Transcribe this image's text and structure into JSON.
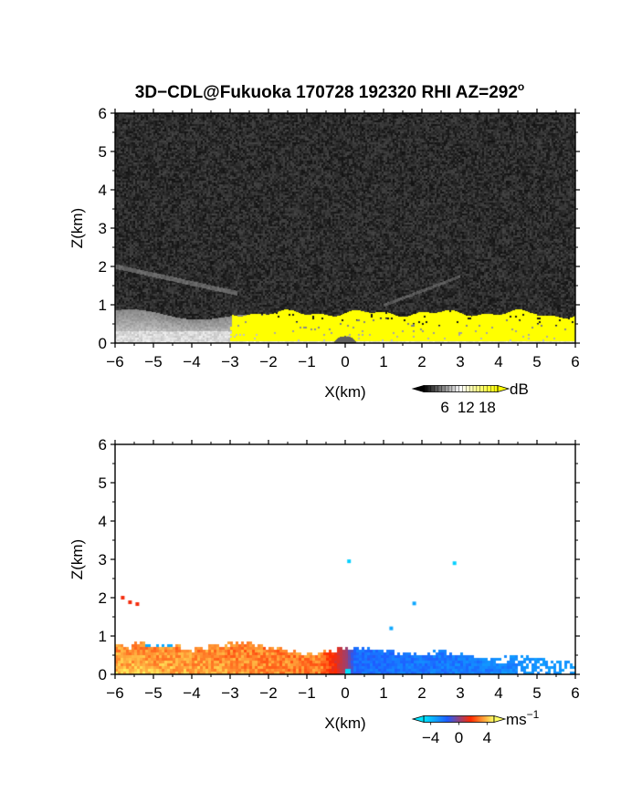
{
  "title": "3D−CDL@Fukuoka 170728 192320 RHI AZ=292",
  "title_degree": "o",
  "chart_data": [
    {
      "type": "heatmap",
      "name": "",
      "variable": "backscatter intensity",
      "xlabel": "X(km)",
      "ylabel": "Z(km)",
      "xlim": [
        -6,
        6
      ],
      "ylim": [
        0,
        6
      ],
      "xticks": [
        "−6",
        "−5",
        "−4",
        "−3",
        "−2",
        "−1",
        "0",
        "1",
        "2",
        "3",
        "4",
        "5",
        "6"
      ],
      "yticks": [
        "0",
        "1",
        "2",
        "3",
        "4",
        "5",
        "6"
      ],
      "colorbar": {
        "unit": "dB",
        "unit_sup": "",
        "ticks": [
          "6",
          "12",
          "18"
        ],
        "range": [
          0,
          21
        ],
        "colors": [
          "#000000",
          "#ffffff",
          "#ffff00"
        ]
      },
      "features": [
        {
          "region": "noise background",
          "x": [
            -6,
            6
          ],
          "z": [
            0,
            6
          ],
          "value_db": 2
        },
        {
          "region": "grey layer",
          "x": [
            -6,
            6
          ],
          "z": [
            0,
            0.85
          ],
          "value_db": 10
        },
        {
          "region": "bright aerosol layer",
          "x": [
            -3,
            6
          ],
          "z": [
            0,
            0.9
          ],
          "value_db": 19
        }
      ]
    },
    {
      "type": "heatmap",
      "name": "",
      "variable": "radial velocity",
      "xlabel": "X(km)",
      "ylabel": "Z(km)",
      "xlim": [
        -6,
        6
      ],
      "ylim": [
        0,
        6
      ],
      "xticks": [
        "−6",
        "−5",
        "−4",
        "−3",
        "−2",
        "−1",
        "0",
        "1",
        "2",
        "3",
        "4",
        "5",
        "6"
      ],
      "yticks": [
        "0",
        "1",
        "2",
        "3",
        "4",
        "5",
        "6"
      ],
      "colorbar": {
        "unit": "ms",
        "unit_sup": "−1",
        "ticks": [
          "−4",
          "0",
          "4"
        ],
        "range": [
          -5,
          5
        ],
        "colors": [
          "#00e5ff",
          "#1e5cff",
          "#ff2a00",
          "#ffff66"
        ]
      },
      "features": [
        {
          "region": "receding flow",
          "x": [
            -6,
            0
          ],
          "z": [
            0,
            0.85
          ],
          "velocity_ms": 3.5
        },
        {
          "region": "approaching flow",
          "x": [
            0,
            6
          ],
          "z": [
            0,
            0.8
          ],
          "velocity_ms": -2.5
        },
        {
          "region": "isolated returns",
          "points": [
            [
              -5.8,
              2.0,
              1.5
            ],
            [
              0.1,
              2.95,
              -4.5
            ],
            [
              2.85,
              2.9,
              -4.5
            ],
            [
              1.8,
              1.85,
              -3.5
            ],
            [
              1.2,
              1.2,
              -3.5
            ]
          ]
        }
      ]
    }
  ]
}
